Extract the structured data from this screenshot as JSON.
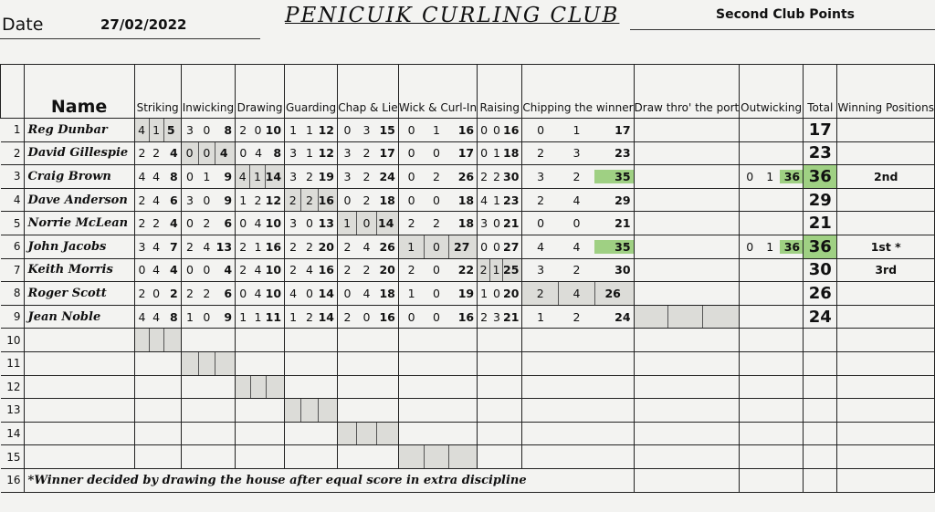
{
  "header": {
    "date_label": "Date",
    "date": "27/02/2022",
    "title": "PENICUIK CURLING CLUB",
    "subtitle": "Second Club Points"
  },
  "columns": {
    "name": "Name",
    "disciplines": [
      "Striking",
      "Inwicking",
      "Drawing",
      "Guarding",
      "Chap & Lie",
      "Wick & Curl-In",
      "Raising",
      "Chipping the winner",
      "Draw thro' the port",
      "Outwicking"
    ],
    "total": "Total",
    "winning": "Winning Positions"
  },
  "rows": [
    {
      "no": "1",
      "name": "Reg Dunbar",
      "scores": [
        [
          "4",
          "1",
          "5"
        ],
        [
          "3",
          "0",
          "8"
        ],
        [
          "2",
          "0",
          "10"
        ],
        [
          "1",
          "1",
          "12"
        ],
        [
          "0",
          "3",
          "15"
        ],
        [
          "0",
          "1",
          "16"
        ],
        [
          "0",
          "0",
          "16"
        ],
        [
          "0",
          "1",
          "17"
        ],
        null,
        null
      ],
      "total": "17",
      "position": "",
      "shaded": 0
    },
    {
      "no": "2",
      "name": "David Gillespie",
      "scores": [
        [
          "2",
          "2",
          "4"
        ],
        [
          "0",
          "0",
          "4"
        ],
        [
          "0",
          "4",
          "8"
        ],
        [
          "3",
          "1",
          "12"
        ],
        [
          "3",
          "2",
          "17"
        ],
        [
          "0",
          "0",
          "17"
        ],
        [
          "0",
          "1",
          "18"
        ],
        [
          "2",
          "3",
          "23"
        ],
        null,
        null
      ],
      "total": "23",
      "position": "",
      "shaded": 1
    },
    {
      "no": "3",
      "name": "Craig Brown",
      "scores": [
        [
          "4",
          "4",
          "8"
        ],
        [
          "0",
          "1",
          "9"
        ],
        [
          "4",
          "1",
          "14"
        ],
        [
          "3",
          "2",
          "19"
        ],
        [
          "3",
          "2",
          "24"
        ],
        [
          "0",
          "2",
          "26"
        ],
        [
          "2",
          "2",
          "30"
        ],
        [
          "3",
          "2",
          "35"
        ],
        null,
        [
          "0",
          "1",
          "36"
        ]
      ],
      "total": "36",
      "position": "2nd",
      "shaded": 2,
      "highlight": true
    },
    {
      "no": "4",
      "name": "Dave Anderson",
      "scores": [
        [
          "2",
          "4",
          "6"
        ],
        [
          "3",
          "0",
          "9"
        ],
        [
          "1",
          "2",
          "12"
        ],
        [
          "2",
          "2",
          "16"
        ],
        [
          "0",
          "2",
          "18"
        ],
        [
          "0",
          "0",
          "18"
        ],
        [
          "4",
          "1",
          "23"
        ],
        [
          "2",
          "4",
          "29"
        ],
        null,
        null
      ],
      "total": "29",
      "position": "",
      "shaded": 3
    },
    {
      "no": "5",
      "name": "Norrie McLean",
      "scores": [
        [
          "2",
          "2",
          "4"
        ],
        [
          "0",
          "2",
          "6"
        ],
        [
          "0",
          "4",
          "10"
        ],
        [
          "3",
          "0",
          "13"
        ],
        [
          "1",
          "0",
          "14"
        ],
        [
          "2",
          "2",
          "18"
        ],
        [
          "3",
          "0",
          "21"
        ],
        [
          "0",
          "0",
          "21"
        ],
        null,
        null
      ],
      "total": "21",
      "position": "",
      "shaded": 4
    },
    {
      "no": "6",
      "name": "John Jacobs",
      "scores": [
        [
          "3",
          "4",
          "7"
        ],
        [
          "2",
          "4",
          "13"
        ],
        [
          "2",
          "1",
          "16"
        ],
        [
          "2",
          "2",
          "20"
        ],
        [
          "2",
          "4",
          "26"
        ],
        [
          "1",
          "0",
          "27"
        ],
        [
          "0",
          "0",
          "27"
        ],
        [
          "4",
          "4",
          "35"
        ],
        null,
        [
          "0",
          "1",
          "36"
        ]
      ],
      "total": "36",
      "position": "1st *",
      "shaded": 5,
      "highlight": true
    },
    {
      "no": "7",
      "name": "Keith Morris",
      "scores": [
        [
          "0",
          "4",
          "4"
        ],
        [
          "0",
          "0",
          "4"
        ],
        [
          "2",
          "4",
          "10"
        ],
        [
          "2",
          "4",
          "16"
        ],
        [
          "2",
          "2",
          "20"
        ],
        [
          "2",
          "0",
          "22"
        ],
        [
          "2",
          "1",
          "25"
        ],
        [
          "3",
          "2",
          "30"
        ],
        null,
        null
      ],
      "total": "30",
      "position": "3rd",
      "shaded": 6
    },
    {
      "no": "8",
      "name": "Roger Scott",
      "scores": [
        [
          "2",
          "0",
          "2"
        ],
        [
          "2",
          "2",
          "6"
        ],
        [
          "0",
          "4",
          "10"
        ],
        [
          "4",
          "0",
          "14"
        ],
        [
          "0",
          "4",
          "18"
        ],
        [
          "1",
          "0",
          "19"
        ],
        [
          "1",
          "0",
          "20"
        ],
        [
          "2",
          "4",
          "26"
        ],
        null,
        null
      ],
      "total": "26",
      "position": "",
      "shaded": 7
    },
    {
      "no": "9",
      "name": "Jean Noble",
      "scores": [
        [
          "4",
          "4",
          "8"
        ],
        [
          "1",
          "0",
          "9"
        ],
        [
          "1",
          "1",
          "11"
        ],
        [
          "1",
          "2",
          "14"
        ],
        [
          "2",
          "0",
          "16"
        ],
        [
          "0",
          "0",
          "16"
        ],
        [
          "2",
          "3",
          "21"
        ],
        [
          "1",
          "2",
          "24"
        ],
        null,
        null
      ],
      "total": "24",
      "position": "",
      "shaded": 8
    },
    {
      "no": "10",
      "name": "",
      "scores": [],
      "total": "",
      "position": "",
      "shaded": 0
    },
    {
      "no": "11",
      "name": "",
      "scores": [],
      "total": "",
      "position": "",
      "shaded": 1
    },
    {
      "no": "12",
      "name": "",
      "scores": [],
      "total": "",
      "position": "",
      "shaded": 2
    },
    {
      "no": "13",
      "name": "",
      "scores": [],
      "total": "",
      "position": "",
      "shaded": 3
    },
    {
      "no": "14",
      "name": "",
      "scores": [],
      "total": "",
      "position": "",
      "shaded": 4
    },
    {
      "no": "15",
      "name": "",
      "scores": [],
      "total": "",
      "position": "",
      "shaded": 5
    }
  ],
  "footer": {
    "no": "16",
    "note": "*Winner decided by drawing the house after equal score in extra discipline"
  },
  "colors": {
    "highlight": "#9fd083",
    "shade": "#dcdcd8"
  }
}
